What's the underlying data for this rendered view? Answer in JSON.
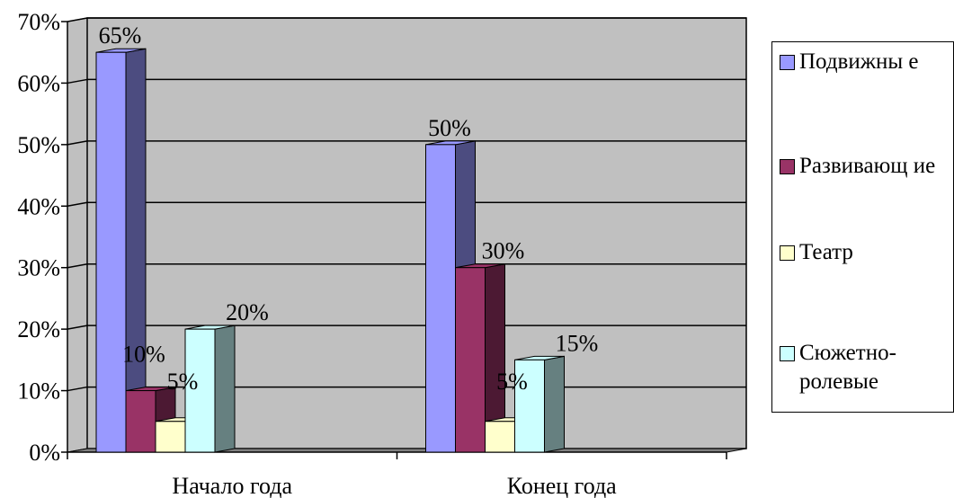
{
  "chart_data": {
    "type": "bar",
    "categories": [
      "Начало года",
      "Конец года"
    ],
    "series": [
      {
        "name": "Подвижные",
        "values": [
          65,
          50
        ],
        "labels": [
          "65%",
          "50%"
        ],
        "color": "#9999ff",
        "side_color": "#4c4c80"
      },
      {
        "name": "Развивающие",
        "values": [
          10,
          30
        ],
        "labels": [
          "10%",
          "30%"
        ],
        "color": "#993366",
        "side_color": "#4c1933"
      },
      {
        "name": "Театр",
        "values": [
          5,
          5
        ],
        "labels": [
          "5%",
          "5%"
        ],
        "color": "#ffffcc",
        "side_color": "#808066"
      },
      {
        "name": "Сюжетно-ролевые",
        "values": [
          20,
          15
        ],
        "labels": [
          "20%",
          "15%"
        ],
        "color": "#ccffff",
        "side_color": "#668080"
      }
    ],
    "ylim": [
      0,
      70
    ],
    "yticks": [
      "0%",
      "10%",
      "20%",
      "30%",
      "40%",
      "50%",
      "60%",
      "70%"
    ],
    "grid": true,
    "plot_background": "#c0c0c0",
    "legend_position": "right",
    "bar_style": "3d"
  },
  "legend": {
    "items": [
      {
        "label": "Подвижны е",
        "color": "#9999ff"
      },
      {
        "label": "Развивающ ие",
        "color": "#993366"
      },
      {
        "label": "Театр",
        "color": "#ffffcc"
      },
      {
        "label": "Сюжетно-ролевые",
        "color": "#ccffff"
      }
    ]
  }
}
